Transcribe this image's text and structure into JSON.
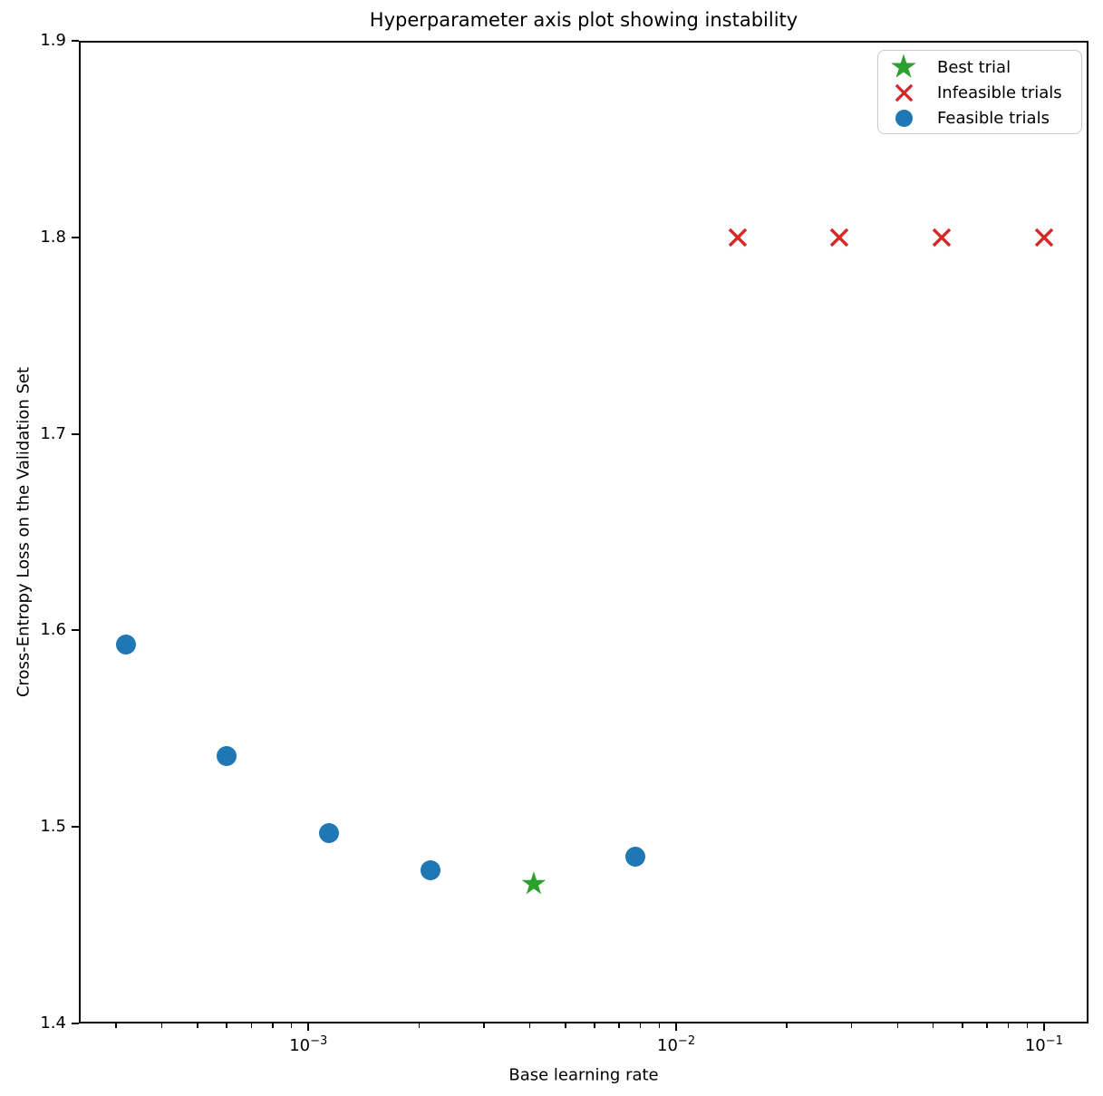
{
  "page": {
    "background_color": "#ffffff",
    "text_color": "#000000",
    "axis_color": "#000000"
  },
  "chart_data": {
    "type": "scatter",
    "title": "Hyperparameter axis plot showing instability",
    "xlabel": "Base learning rate",
    "ylabel": "Cross-Entropy Loss on the Validation Set",
    "x_scale": "log",
    "x_range_log10": [
      -3.624,
      -0.879
    ],
    "ylim": [
      1.4,
      1.9
    ],
    "yticks": [
      1.9,
      1.8,
      1.7,
      1.6,
      1.5,
      1.4
    ],
    "xtick_exponents": [
      -3,
      -2,
      -1
    ],
    "grid": false,
    "legend_position": "upper right",
    "series": [
      {
        "name": "Best trial",
        "marker": "star",
        "color": "#2ca02c",
        "points": [
          {
            "x": 0.0041,
            "y": 1.471
          }
        ]
      },
      {
        "name": "Infeasible trials",
        "marker": "x",
        "color": "#d62728",
        "points": [
          {
            "x": 0.0147,
            "y": 1.8
          },
          {
            "x": 0.0278,
            "y": 1.8
          },
          {
            "x": 0.0527,
            "y": 1.8
          },
          {
            "x": 0.1,
            "y": 1.8
          }
        ]
      },
      {
        "name": "Feasible trials",
        "marker": "circle",
        "color": "#1f77b4",
        "points": [
          {
            "x": 0.00032,
            "y": 1.593
          },
          {
            "x": 0.0006,
            "y": 1.536
          },
          {
            "x": 0.00114,
            "y": 1.497
          },
          {
            "x": 0.00215,
            "y": 1.478
          },
          {
            "x": 0.00774,
            "y": 1.485
          }
        ]
      }
    ]
  }
}
